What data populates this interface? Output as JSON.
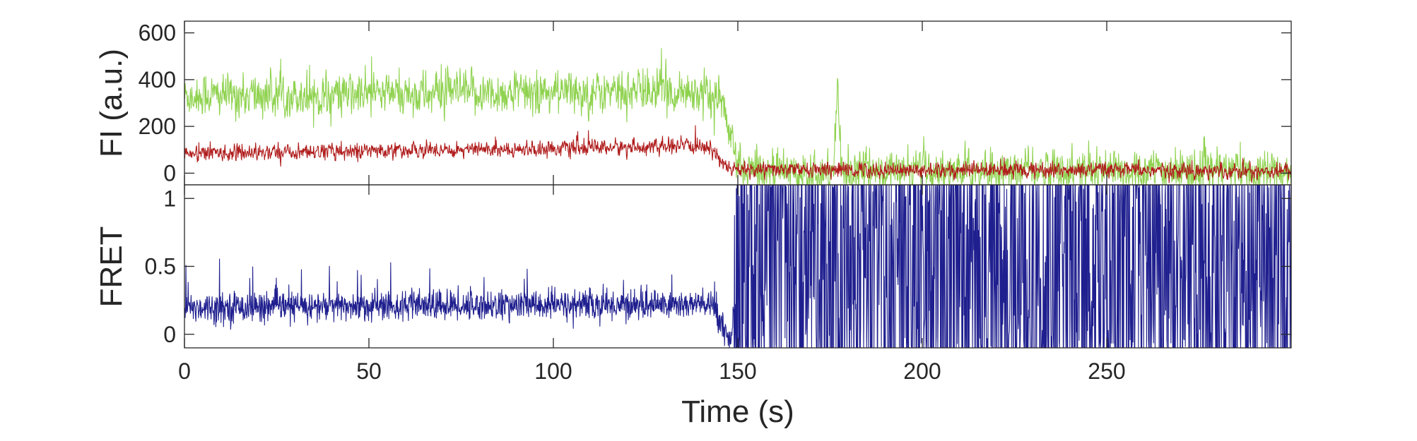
{
  "chart_data": [
    {
      "type": "line",
      "xlabel": "",
      "ylabel": "FI (a.u.)",
      "xlim": [
        0,
        300
      ],
      "ylim": [
        -50,
        650
      ],
      "xticks": [
        0,
        50,
        100,
        150,
        200,
        250
      ],
      "yticks": [
        0,
        200,
        400,
        600
      ],
      "ytick_labels": [
        "0",
        "200",
        "400",
        "600"
      ],
      "grid": false,
      "series": [
        {
          "color": "#8fd24f",
          "x": [
            0,
            140,
            143,
            146,
            148,
            150,
            152,
            176,
            177,
            178,
            300
          ],
          "y": [
            330,
            350,
            330,
            300,
            150,
            30,
            10,
            10,
            450,
            10,
            10
          ],
          "noise": 60
        },
        {
          "color": "#b01c1c",
          "x": [
            0,
            140,
            144,
            146,
            148,
            300
          ],
          "y": [
            85,
            115,
            90,
            40,
            15,
            10
          ],
          "noise": 22
        }
      ]
    },
    {
      "type": "line",
      "xlabel": "Time (s)",
      "ylabel": "FRET",
      "xlim": [
        0,
        300
      ],
      "ylim": [
        -0.1,
        1.1
      ],
      "xticks": [
        0,
        50,
        100,
        150,
        200,
        250
      ],
      "xtick_labels": [
        "0",
        "50",
        "100",
        "150",
        "200",
        "250"
      ],
      "yticks": [
        0,
        0.5,
        1
      ],
      "ytick_labels": [
        "0",
        "0.5",
        "1"
      ],
      "grid": false,
      "series": [
        {
          "color": "#1f1f8f",
          "x": [
            0,
            140,
            144,
            146,
            148,
            150,
            300
          ],
          "y": [
            0.2,
            0.22,
            0.2,
            0.05,
            -0.05,
            0.5,
            0.5
          ],
          "noise_before": 0.1,
          "noise_after": 0.8,
          "clip": [
            -0.1,
            1.1
          ]
        }
      ]
    }
  ]
}
